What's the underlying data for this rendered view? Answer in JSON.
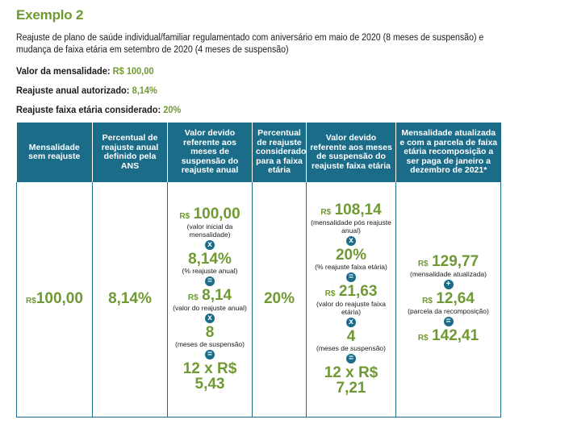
{
  "title": "Exemplo 2",
  "description": "Reajuste de plano de saúde individual/familiar regulamentado com aniversário em maio de 2020 (8 meses de suspensão) e mudança de faixa etária em setembro de 2020 (4 meses de suspensão)",
  "facts": [
    {
      "label": "Valor da mensalidade:",
      "value": "R$ 100,00"
    },
    {
      "label": "Reajuste anual autorizado:",
      "value": "8,14%"
    },
    {
      "label": "Reajuste faixa etária considerado:",
      "value": "20%"
    }
  ],
  "table": {
    "headers": [
      "Mensalidade sem reajuste",
      "Percentual de reajuste anual definido pela ANS",
      "Valor devido referente aos meses de suspensão do reajuste anual",
      "Percentual de reajuste considerado para a faixa etária",
      "Valor devido referente aos meses de suspensão do reajuste faixa etária",
      "Mensalidade atualizada e com a parcela de faixa etária recomposição a ser paga de janeiro a dezembro de 2021*"
    ],
    "col1": {
      "currency": "R$",
      "amount": "100,00"
    },
    "col2": {
      "value": "8,14%"
    },
    "col3": {
      "v1_currency": "R$",
      "v1_amount": "100,00",
      "v1_note": "(valor inicial da mensalidade)",
      "v2": "8,14%",
      "v2_note": "(% reajuste anual)",
      "v3_currency": "R$",
      "v3_amount": "8,14",
      "v3_note": "(valor do reajuste anual)",
      "v4": "8",
      "v4_note": "(meses de suspensão)",
      "result_line1": "12 x R$",
      "result_line2": "5,43"
    },
    "col4": {
      "value": "20%"
    },
    "col5": {
      "v1_currency": "R$",
      "v1_amount": "108,14",
      "v1_note": "(mensalidade pós reajuste anual)",
      "v2": "20%",
      "v2_note": "(% reajuste faixa etária)",
      "v3_currency": "R$",
      "v3_amount": "21,63",
      "v3_note": "(valor do reajuste faixa etária)",
      "v4": "4",
      "v4_note": "(meses de suspensão)",
      "result_line1": "12 x R$",
      "result_line2": "7,21"
    },
    "col6": {
      "v1_currency": "R$",
      "v1_amount": "129,77",
      "v1_note": "(mensalidade atualizada)",
      "v2_currency": "R$",
      "v2_amount": "12,64",
      "v2_note": "(parcela da recomposição)",
      "v3_currency": "R$",
      "v3_amount": "142,41"
    }
  }
}
